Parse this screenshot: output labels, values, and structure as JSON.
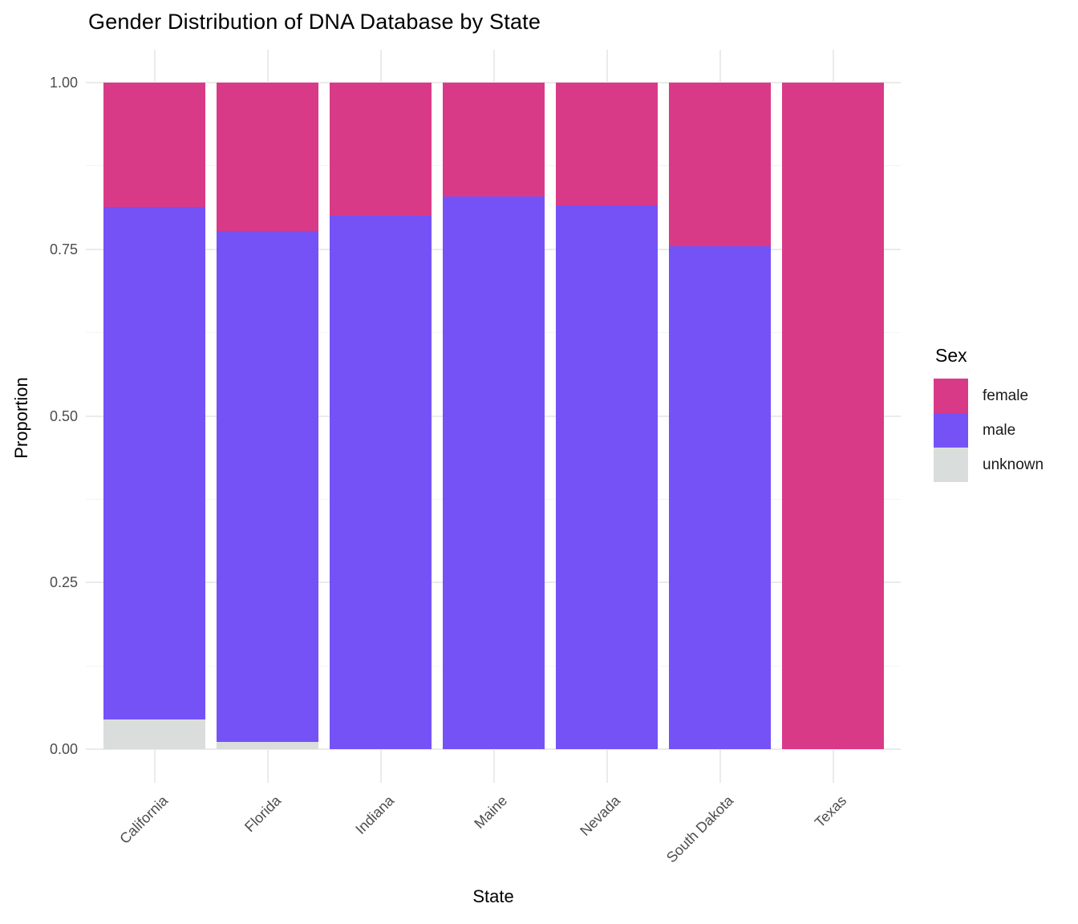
{
  "chart_data": {
    "type": "bar",
    "variant": "stacked-proportion",
    "title": "Gender Distribution of DNA Database by State",
    "xlabel": "State",
    "ylabel": "Proportion",
    "categories": [
      "California",
      "Florida",
      "Indiana",
      "Maine",
      "Nevada",
      "South Dakota",
      "Texas"
    ],
    "series": [
      {
        "name": "female",
        "color": "#D93A88",
        "values": [
          0.187,
          0.223,
          0.2,
          0.171,
          0.184,
          0.246,
          1.0
        ]
      },
      {
        "name": "male",
        "color": "#7552F6",
        "values": [
          0.768,
          0.766,
          0.8,
          0.829,
          0.816,
          0.754,
          0.0
        ]
      },
      {
        "name": "unknown",
        "color": "#D9DDDB",
        "values": [
          0.045,
          0.011,
          0.0,
          0.0,
          0.0,
          0.0,
          0.0
        ]
      }
    ],
    "stack_order_bottom_to_top": [
      "unknown",
      "male",
      "female"
    ],
    "y_axis": {
      "tick_values": [
        0.0,
        0.25,
        0.5,
        0.75,
        1.0
      ],
      "tick_labels": [
        "0.00",
        "0.25",
        "0.50",
        "0.75",
        "1.00"
      ],
      "minor_tick_values": [
        0.125,
        0.375,
        0.625,
        0.875
      ],
      "ylim": [
        0,
        1
      ],
      "grid": true,
      "grid_color": "#EBEBEB"
    },
    "x_axis": {
      "label_rotation_deg": 45,
      "grid": true
    },
    "legend": {
      "title": "Sex",
      "position": "right",
      "entries": [
        "female",
        "male",
        "unknown"
      ]
    },
    "background_color": "#FFFFFF",
    "text_color_axis": "#4D4D4D"
  }
}
